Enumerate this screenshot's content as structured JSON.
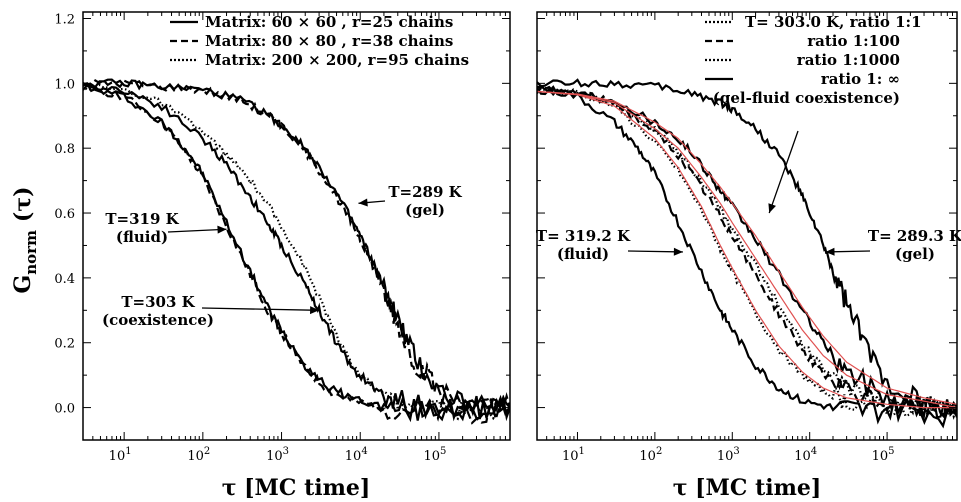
{
  "figure": {
    "ylabel_main": "G",
    "ylabel_sub": "norm",
    "ylabel_arg": "(τ)"
  },
  "chart_data": [
    {
      "type": "line",
      "x_scale": "log",
      "xlabel": "τ  [MC time]",
      "xlim": [
        3,
        800000
      ],
      "ylim": [
        -0.1,
        1.22
      ],
      "yticks": [
        "0.0",
        "0.2",
        "0.4",
        "0.6",
        "0.8",
        "1.0",
        "1.2"
      ],
      "xticks": [
        {
          "base": "10",
          "exp": "1",
          "value": 10
        },
        {
          "base": "10",
          "exp": "2",
          "value": 100
        },
        {
          "base": "10",
          "exp": "3",
          "value": 1000
        },
        {
          "base": "10",
          "exp": "4",
          "value": 10000
        },
        {
          "base": "10",
          "exp": "5",
          "value": 100000
        }
      ],
      "legend": {
        "placement": "top-right",
        "entries": [
          {
            "style": "solid",
            "label": "Matrix:   60 × 60   , r=25 chains"
          },
          {
            "style": "dashed",
            "label": "Matrix:   80 × 80   , r=38 chains"
          },
          {
            "style": "dotted",
            "label": "Matrix: 200 × 200, r=95 chains"
          }
        ]
      },
      "annotations": [
        {
          "line1": "T=319 K",
          "line2": "(fluid)",
          "arrow_to": {
            "x": 200,
            "y": 0.55
          }
        },
        {
          "line1": "T=303 K",
          "line2": "(coexistence)",
          "arrow_to": {
            "x": 3000,
            "y": 0.3
          }
        },
        {
          "line1": "T=289 K",
          "line2": "(gel)",
          "arrow_to": {
            "x": 9500,
            "y": 0.63
          }
        }
      ],
      "series": [
        {
          "style": "solid",
          "color": "#000000",
          "noise": 0.012,
          "x": [
            3,
            10,
            30,
            60,
            100,
            200,
            400,
            700,
            1000,
            2000,
            4000,
            8000,
            20000,
            60000,
            200000,
            800000
          ],
          "y": [
            0.99,
            0.96,
            0.88,
            0.8,
            0.72,
            0.57,
            0.42,
            0.3,
            0.24,
            0.13,
            0.06,
            0.03,
            0.0,
            -0.01,
            0.0,
            0.0
          ]
        },
        {
          "style": "dashed",
          "color": "#000000",
          "noise": 0.012,
          "x": [
            3,
            10,
            30,
            60,
            100,
            200,
            400,
            700,
            1000,
            2000,
            4000,
            8000,
            20000,
            60000,
            200000,
            800000
          ],
          "y": [
            0.99,
            0.96,
            0.88,
            0.79,
            0.71,
            0.56,
            0.41,
            0.29,
            0.23,
            0.12,
            0.05,
            0.02,
            0.0,
            -0.01,
            -0.02,
            0.0
          ]
        },
        {
          "style": "solid",
          "color": "#000000",
          "noise": 0.012,
          "x": [
            3,
            10,
            30,
            100,
            200,
            400,
            700,
            1000,
            2000,
            3000,
            5000,
            8000,
            15000,
            30000,
            100000,
            300000,
            800000
          ],
          "y": [
            0.99,
            0.98,
            0.93,
            0.83,
            0.75,
            0.65,
            0.56,
            0.5,
            0.38,
            0.3,
            0.2,
            0.12,
            0.06,
            0.02,
            0.0,
            0.0,
            0.0
          ]
        },
        {
          "style": "dotted",
          "color": "#000000",
          "noise": 0.01,
          "x": [
            3,
            10,
            30,
            100,
            200,
            400,
            700,
            1000,
            2000,
            3000,
            5000,
            8000,
            15000,
            30000,
            100000,
            300000,
            800000
          ],
          "y": [
            0.99,
            0.98,
            0.94,
            0.85,
            0.78,
            0.7,
            0.62,
            0.56,
            0.43,
            0.34,
            0.22,
            0.13,
            0.06,
            0.02,
            0.0,
            -0.01,
            0.0
          ]
        },
        {
          "style": "solid",
          "color": "#000000",
          "noise": 0.012,
          "x": [
            3,
            10,
            30,
            100,
            300,
            700,
            1000,
            2000,
            4000,
            7000,
            10000,
            15000,
            20000,
            30000,
            50000,
            100000,
            300000,
            800000
          ],
          "y": [
            1.0,
            1.0,
            0.99,
            0.98,
            0.95,
            0.9,
            0.87,
            0.8,
            0.7,
            0.6,
            0.53,
            0.44,
            0.37,
            0.27,
            0.15,
            0.05,
            0.0,
            0.0
          ]
        },
        {
          "style": "dashed",
          "color": "#000000",
          "noise": 0.012,
          "x": [
            3,
            10,
            30,
            100,
            300,
            700,
            1000,
            2000,
            4000,
            7000,
            10000,
            15000,
            20000,
            30000,
            50000,
            100000,
            300000,
            800000
          ],
          "y": [
            1.0,
            1.0,
            0.99,
            0.98,
            0.95,
            0.9,
            0.87,
            0.79,
            0.69,
            0.59,
            0.52,
            0.43,
            0.36,
            0.26,
            0.14,
            0.05,
            0.0,
            0.0
          ]
        }
      ]
    },
    {
      "type": "line",
      "x_scale": "log",
      "xlabel": "τ  [MC time]",
      "xlim": [
        3,
        800000
      ],
      "ylim": [
        -0.1,
        1.22
      ],
      "xticks": [
        {
          "base": "10",
          "exp": "1",
          "value": 10
        },
        {
          "base": "10",
          "exp": "2",
          "value": 100
        },
        {
          "base": "10",
          "exp": "3",
          "value": 1000
        },
        {
          "base": "10",
          "exp": "4",
          "value": 10000
        },
        {
          "base": "10",
          "exp": "5",
          "value": 100000
        }
      ],
      "legend": {
        "placement": "top-right",
        "entries": [
          {
            "style": "dotted",
            "label": "T= 303.0 K, ratio 1:1"
          },
          {
            "style": "dashed",
            "label": "ratio 1:100"
          },
          {
            "style": "dotted",
            "label": "ratio 1:1000"
          },
          {
            "style": "solid",
            "label": "ratio 1: ∞"
          }
        ],
        "footer": "(gel-fluid coexistence)"
      },
      "annotations": [
        {
          "line1": "T= 319.2 K",
          "line2": "(fluid)",
          "arrow_to": {
            "x": 230,
            "y": 0.48
          }
        },
        {
          "line1": "T= 289.3 K",
          "line2": "(gel)",
          "arrow_to": {
            "x": 16000,
            "y": 0.48
          }
        },
        {
          "line1": "",
          "line2": "",
          "arrow_to": {
            "x": 3000,
            "y": 0.6
          }
        }
      ],
      "series": [
        {
          "style": "solid",
          "color": "#000000",
          "noise": 0.012,
          "x": [
            3,
            10,
            30,
            60,
            100,
            200,
            400,
            700,
            1000,
            2000,
            4000,
            8000,
            20000,
            60000,
            200000,
            800000
          ],
          "y": [
            0.99,
            0.96,
            0.88,
            0.8,
            0.72,
            0.57,
            0.42,
            0.3,
            0.24,
            0.13,
            0.06,
            0.02,
            0.0,
            -0.01,
            0.0,
            -0.03
          ]
        },
        {
          "style": "dotted",
          "color": "#000000",
          "noise": 0.01,
          "x": [
            3,
            10,
            30,
            100,
            200,
            400,
            700,
            1000,
            2000,
            4000,
            8000,
            15000,
            30000,
            100000,
            300000,
            800000
          ],
          "y": [
            0.98,
            0.97,
            0.93,
            0.82,
            0.73,
            0.61,
            0.49,
            0.42,
            0.29,
            0.18,
            0.1,
            0.05,
            0.02,
            0.0,
            0.0,
            0.0
          ]
        },
        {
          "style": "dashed",
          "color": "#000000",
          "noise": 0.012,
          "x": [
            3,
            10,
            30,
            100,
            200,
            400,
            700,
            1000,
            2000,
            4000,
            8000,
            15000,
            30000,
            100000,
            300000,
            800000
          ],
          "y": [
            0.98,
            0.97,
            0.94,
            0.85,
            0.78,
            0.68,
            0.59,
            0.53,
            0.41,
            0.29,
            0.18,
            0.1,
            0.05,
            0.01,
            0.0,
            0.0
          ]
        },
        {
          "style": "dotted",
          "color": "#000000",
          "noise": 0.01,
          "x": [
            3,
            10,
            30,
            100,
            200,
            400,
            700,
            1000,
            2000,
            4000,
            8000,
            15000,
            30000,
            100000,
            300000,
            800000
          ],
          "y": [
            0.98,
            0.97,
            0.94,
            0.86,
            0.79,
            0.7,
            0.61,
            0.55,
            0.44,
            0.32,
            0.2,
            0.12,
            0.06,
            0.01,
            0.0,
            0.0
          ]
        },
        {
          "style": "solid",
          "color": "#000000",
          "noise": 0.012,
          "x": [
            3,
            10,
            30,
            100,
            200,
            400,
            700,
            1000,
            2000,
            4000,
            8000,
            15000,
            30000,
            100000,
            300000,
            800000
          ],
          "y": [
            0.98,
            0.97,
            0.95,
            0.88,
            0.83,
            0.75,
            0.67,
            0.62,
            0.52,
            0.41,
            0.3,
            0.2,
            0.11,
            0.03,
            0.0,
            0.0
          ]
        },
        {
          "style": "solid",
          "color": "#000000",
          "noise": 0.012,
          "x": [
            3,
            10,
            30,
            100,
            300,
            700,
            1000,
            2000,
            4000,
            7000,
            10000,
            15000,
            20000,
            30000,
            50000,
            100000,
            300000,
            800000
          ],
          "y": [
            1.0,
            1.0,
            1.0,
            0.99,
            0.97,
            0.94,
            0.92,
            0.86,
            0.78,
            0.68,
            0.6,
            0.5,
            0.42,
            0.32,
            0.2,
            0.08,
            0.01,
            0.0
          ]
        },
        {
          "style": "solid",
          "color": "#e05050",
          "noise": 0,
          "x": [
            3,
            10,
            30,
            100,
            200,
            400,
            700,
            1000,
            2000,
            4000,
            8000,
            15000,
            30000,
            100000,
            300000,
            800000
          ],
          "y": [
            0.975,
            0.965,
            0.93,
            0.83,
            0.74,
            0.62,
            0.5,
            0.43,
            0.3,
            0.19,
            0.11,
            0.06,
            0.03,
            0.01,
            0.0,
            0.0
          ]
        },
        {
          "style": "solid",
          "color": "#e05050",
          "noise": 0,
          "x": [
            3,
            10,
            30,
            100,
            200,
            400,
            700,
            1000,
            2000,
            4000,
            8000,
            15000,
            30000,
            100000,
            300000,
            800000
          ],
          "y": [
            0.975,
            0.965,
            0.94,
            0.86,
            0.8,
            0.71,
            0.63,
            0.57,
            0.46,
            0.35,
            0.24,
            0.16,
            0.1,
            0.04,
            0.02,
            0.0
          ]
        },
        {
          "style": "solid",
          "color": "#e05050",
          "noise": 0,
          "x": [
            3,
            10,
            30,
            100,
            200,
            400,
            700,
            1000,
            2000,
            4000,
            8000,
            15000,
            30000,
            100000,
            300000,
            800000
          ],
          "y": [
            0.975,
            0.967,
            0.945,
            0.88,
            0.83,
            0.75,
            0.68,
            0.63,
            0.53,
            0.42,
            0.31,
            0.22,
            0.14,
            0.06,
            0.03,
            0.01
          ]
        }
      ]
    }
  ]
}
